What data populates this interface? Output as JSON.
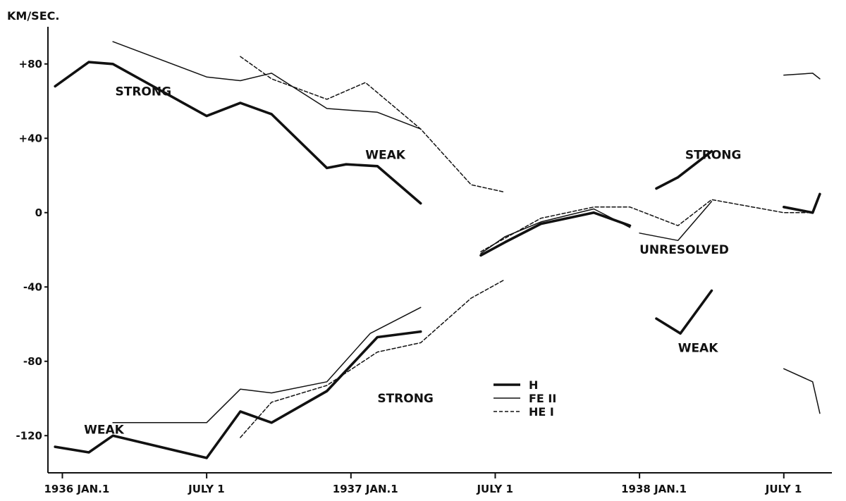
{
  "chart_data": {
    "type": "line",
    "ylabel": "KM/SEC.",
    "ylim": [
      -140,
      100
    ],
    "xlim": [
      -0.6,
      32
    ],
    "x_unit": "months since 1936 Jan 1",
    "y_ticks": [
      {
        "value": 80,
        "label": "+80"
      },
      {
        "value": 40,
        "label": "+40"
      },
      {
        "value": 0,
        "label": "0"
      },
      {
        "value": -40,
        "label": "-40"
      },
      {
        "value": -80,
        "label": "-80"
      },
      {
        "value": -120,
        "label": "-120"
      }
    ],
    "x_ticks": [
      {
        "value": 0,
        "label": "1936 JAN.1"
      },
      {
        "value": 6,
        "label": "JULY 1"
      },
      {
        "value": 12,
        "label": "1937 JAN.1"
      },
      {
        "value": 18,
        "label": "JULY 1"
      },
      {
        "value": 24,
        "label": "1938 JAN.1"
      },
      {
        "value": 30,
        "label": "JULY 1"
      }
    ],
    "legend": [
      {
        "label": "H",
        "style": "thick"
      },
      {
        "label": "FE II",
        "style": "thin"
      },
      {
        "label": "HE I",
        "style": "dashed"
      }
    ],
    "annotations": [
      {
        "text": "STRONG",
        "x": 2.2,
        "y": 63
      },
      {
        "text": "WEAK",
        "x": 12.6,
        "y": 29
      },
      {
        "text": "STRONG",
        "x": 25.9,
        "y": 29
      },
      {
        "text": "UNRESOLVED",
        "x": 24.0,
        "y": -22
      },
      {
        "text": "WEAK",
        "x": 25.6,
        "y": -75
      },
      {
        "text": "STRONG",
        "x": 13.1,
        "y": -102
      },
      {
        "text": "WEAK",
        "x": 0.9,
        "y": -119
      }
    ],
    "series": [
      {
        "name": "H",
        "style": "thick",
        "segments": [
          [
            [
              -0.3,
              68
            ],
            [
              1.1,
              81
            ],
            [
              2.1,
              80
            ],
            [
              6.0,
              52
            ],
            [
              7.4,
              59
            ],
            [
              8.7,
              53
            ],
            [
              11.0,
              24
            ],
            [
              11.8,
              26
            ],
            [
              13.1,
              25
            ],
            [
              14.9,
              5
            ]
          ],
          [
            [
              17.4,
              -23
            ],
            [
              18.4,
              -16
            ],
            [
              19.9,
              -6
            ],
            [
              22.1,
              0
            ],
            [
              23.6,
              -7
            ]
          ],
          [
            [
              24.7,
              13
            ],
            [
              25.6,
              19
            ],
            [
              27.0,
              33
            ]
          ],
          [
            [
              30.0,
              3
            ],
            [
              31.2,
              0
            ],
            [
              31.5,
              10
            ]
          ],
          [
            [
              -0.3,
              -126
            ],
            [
              1.1,
              -129
            ],
            [
              2.1,
              -120
            ],
            [
              6.0,
              -132
            ],
            [
              7.4,
              -107
            ],
            [
              8.7,
              -113
            ],
            [
              11.0,
              -96
            ],
            [
              13.1,
              -67
            ],
            [
              14.9,
              -64
            ]
          ],
          [
            [
              24.7,
              -57
            ],
            [
              25.7,
              -65
            ],
            [
              27.0,
              -42
            ]
          ]
        ]
      },
      {
        "name": "FE II",
        "style": "thin",
        "segments": [
          [
            [
              2.1,
              92
            ],
            [
              6.0,
              73
            ],
            [
              7.4,
              71
            ],
            [
              8.7,
              75
            ],
            [
              11.0,
              56
            ],
            [
              13.1,
              54
            ],
            [
              14.9,
              45
            ]
          ],
          [
            [
              17.4,
              -22
            ],
            [
              18.4,
              -13
            ],
            [
              19.9,
              -5
            ],
            [
              22.1,
              2
            ],
            [
              23.6,
              -8
            ]
          ],
          [
            [
              24.0,
              -11
            ],
            [
              25.6,
              -15
            ],
            [
              27.0,
              6
            ]
          ],
          [
            [
              30.0,
              74
            ],
            [
              31.2,
              75
            ],
            [
              31.5,
              72
            ]
          ],
          [
            [
              2.1,
              -113
            ],
            [
              6.0,
              -113
            ],
            [
              7.4,
              -95
            ],
            [
              8.7,
              -97
            ],
            [
              11.0,
              -91
            ],
            [
              12.8,
              -65
            ],
            [
              14.9,
              -51
            ]
          ],
          [
            [
              30.0,
              -84
            ],
            [
              31.2,
              -91
            ],
            [
              31.5,
              -108
            ]
          ]
        ]
      },
      {
        "name": "HE I",
        "style": "dashed",
        "segments": [
          [
            [
              7.4,
              84
            ],
            [
              8.7,
              72
            ],
            [
              11.0,
              61
            ],
            [
              12.6,
              70
            ],
            [
              14.9,
              45
            ],
            [
              17.0,
              15
            ],
            [
              18.4,
              11
            ]
          ],
          [
            [
              17.4,
              -21
            ],
            [
              19.9,
              -3
            ],
            [
              22.1,
              3
            ],
            [
              23.6,
              3
            ],
            [
              25.6,
              -7
            ],
            [
              27.0,
              7
            ],
            [
              30.0,
              0
            ],
            [
              31.2,
              0
            ]
          ],
          [
            [
              7.4,
              -121
            ],
            [
              8.7,
              -102
            ],
            [
              11.0,
              -93
            ],
            [
              13.1,
              -75
            ],
            [
              14.9,
              -70
            ],
            [
              17.0,
              -46
            ],
            [
              18.4,
              -36
            ]
          ]
        ]
      }
    ]
  }
}
